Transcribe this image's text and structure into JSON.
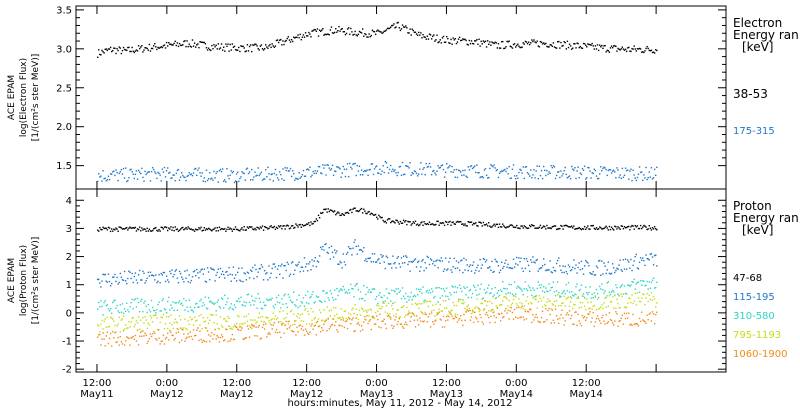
{
  "chart_data": [
    {
      "type": "scatter",
      "panel": "electron",
      "ylabel_lines": [
        "ACE EPAM",
        "log(Electron Flux)",
        "[1/(cm²s ster MeV)]"
      ],
      "ylim": [
        1.2,
        3.55
      ],
      "yticks": [
        1.5,
        2.0,
        2.5,
        3.0,
        3.5
      ],
      "ytick_labels": [
        "1.5",
        "2.0",
        "2.5",
        "3.0",
        "3.5"
      ],
      "legend_title": [
        "Electron",
        "Energy ran",
        "[keV]"
      ],
      "series": [
        {
          "name": "38-53",
          "color": "#000000",
          "x": [
            0,
            0.1,
            0.2,
            0.35,
            0.5,
            0.65,
            0.8,
            1.0,
            1.2,
            1.5,
            1.7,
            1.85,
            2.0,
            2.15,
            2.3,
            2.5,
            2.7,
            2.85,
            3.0,
            3.2,
            3.4,
            3.6,
            3.8,
            4.0
          ],
          "y": [
            2.95,
            3.0,
            2.98,
            3.02,
            3.05,
            3.08,
            3.04,
            3.02,
            3.02,
            3.2,
            3.25,
            3.22,
            3.2,
            3.3,
            3.18,
            3.12,
            3.1,
            3.05,
            3.07,
            3.08,
            3.05,
            3.02,
            3.0,
            3.0
          ]
        },
        {
          "name": "175-315",
          "color": "#1f78c8",
          "x": [
            0,
            0.5,
            1.0,
            1.5,
            2.0,
            2.5,
            3.0,
            3.5,
            4.0
          ],
          "y": [
            1.38,
            1.4,
            1.38,
            1.42,
            1.48,
            1.45,
            1.43,
            1.42,
            1.4
          ]
        }
      ]
    },
    {
      "type": "scatter",
      "panel": "proton",
      "ylabel_lines": [
        "ACE EPAM",
        "log(Proton Flux)",
        "[1/(cm²s ster MeV)]"
      ],
      "ylim": [
        -2.1,
        4.4
      ],
      "yticks": [
        -2,
        -1,
        0,
        1,
        2,
        3,
        4
      ],
      "ytick_labels": [
        "-2",
        "-1",
        "0",
        "1",
        "2",
        "3",
        "4"
      ],
      "legend_title": [
        "Proton",
        "Energy ran",
        "[keV]"
      ],
      "series": [
        {
          "name": "47-68",
          "color": "#000000",
          "x": [
            0,
            0.6,
            1.0,
            1.3,
            1.55,
            1.62,
            1.75,
            1.85,
            1.95,
            2.05,
            2.3,
            2.6,
            3.0,
            3.4,
            3.8,
            4.0
          ],
          "y": [
            3.0,
            3.0,
            3.0,
            3.05,
            3.2,
            3.7,
            3.5,
            3.7,
            3.6,
            3.3,
            3.2,
            3.2,
            3.1,
            3.05,
            3.05,
            3.05
          ]
        },
        {
          "name": "115-195",
          "color": "#1f78c8",
          "x": [
            0,
            0.5,
            1.0,
            1.3,
            1.55,
            1.62,
            1.75,
            1.85,
            1.95,
            2.1,
            2.4,
            2.8,
            3.2,
            3.55,
            3.75,
            3.9,
            4.0
          ],
          "y": [
            1.2,
            1.3,
            1.4,
            1.5,
            1.8,
            2.3,
            1.9,
            2.4,
            2.0,
            1.8,
            1.75,
            1.7,
            1.75,
            1.6,
            1.7,
            1.9,
            1.9
          ]
        },
        {
          "name": "310-580",
          "color": "#2fd4c6",
          "x": [
            0,
            0.5,
            1.0,
            1.5,
            1.85,
            2.0,
            2.5,
            3.0,
            3.55,
            3.75,
            4.0
          ],
          "y": [
            0.2,
            0.3,
            0.4,
            0.5,
            0.8,
            0.6,
            0.7,
            0.9,
            0.8,
            0.9,
            1.1
          ]
        },
        {
          "name": "795-1193",
          "color": "#c6dc10",
          "x": [
            0,
            0.5,
            1.0,
            1.5,
            2.0,
            2.5,
            3.0,
            3.5,
            4.0
          ],
          "y": [
            -0.4,
            -0.3,
            -0.3,
            -0.1,
            0.1,
            0.2,
            0.4,
            0.4,
            0.5
          ]
        },
        {
          "name": "1060-1900",
          "color": "#f28c1a",
          "x": [
            0,
            0.5,
            1.0,
            1.5,
            2.0,
            2.5,
            3.0,
            3.5,
            4.0
          ],
          "y": [
            -0.9,
            -0.8,
            -0.7,
            -0.5,
            -0.3,
            -0.2,
            0.0,
            -0.2,
            -0.2
          ]
        }
      ]
    }
  ],
  "x_axis": {
    "xlim": [
      -0.15,
      4.5
    ],
    "ticks": [
      0.0,
      0.5,
      1.0,
      1.5,
      2.0,
      2.5,
      3.0,
      3.5,
      4.0,
      4.5
    ],
    "tick_labels_top": [
      "12:00",
      "0:00",
      "12:00",
      "12:00",
      "0:00",
      "12:00",
      "0:00",
      "12:00"
    ],
    "tick_labels_bottom": [
      "May11",
      "May12",
      "May12",
      "May12",
      "May13",
      "May13",
      "May14",
      "May14"
    ],
    "label_ticks": [
      0.0,
      0.5,
      1.0,
      1.5,
      2.0,
      2.5,
      3.0,
      3.5
    ],
    "label_tick_values": [
      0.0,
      0.5,
      1.0,
      1.5,
      2.0,
      2.5,
      3.0,
      3.5
    ],
    "xlabel": "hours:minutes, May 11, 2012 - May 14, 2012"
  }
}
